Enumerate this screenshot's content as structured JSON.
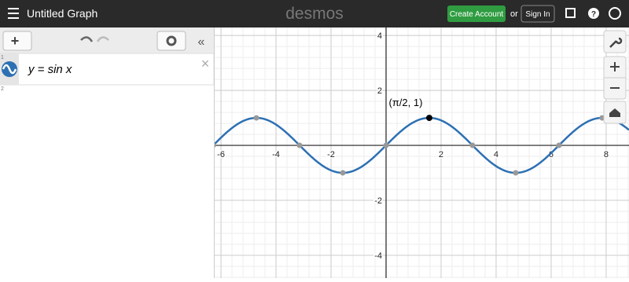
{
  "header": {
    "title": "Untitled Graph",
    "logo": "desmos",
    "create_account": "Create Account",
    "or": "or",
    "sign_in": "Sign In"
  },
  "expressions": [
    {
      "index": "1",
      "text": "y = sin x"
    },
    {
      "index": "2"
    }
  ],
  "graph": {
    "function": "sin",
    "xlim": [
      -6.23,
      8.83
    ],
    "ylim": [
      -4.83,
      4.29
    ],
    "xticks": [
      -6,
      -4,
      -2,
      2,
      4,
      6,
      8
    ],
    "yticks": [
      -4,
      -2,
      2,
      4
    ],
    "points": [
      {
        "x": -6.2832,
        "y": 0
      },
      {
        "x": -4.7124,
        "y": 1
      },
      {
        "x": -3.1416,
        "y": 0
      },
      {
        "x": -1.5708,
        "y": -1
      },
      {
        "x": 0,
        "y": 0
      },
      {
        "x": 3.1416,
        "y": 0
      },
      {
        "x": 4.7124,
        "y": -1
      },
      {
        "x": 6.2832,
        "y": 0
      },
      {
        "x": 7.854,
        "y": 1
      }
    ],
    "highlight": {
      "x": 1.5708,
      "y": 1,
      "label": "(π/2, 1)"
    }
  }
}
